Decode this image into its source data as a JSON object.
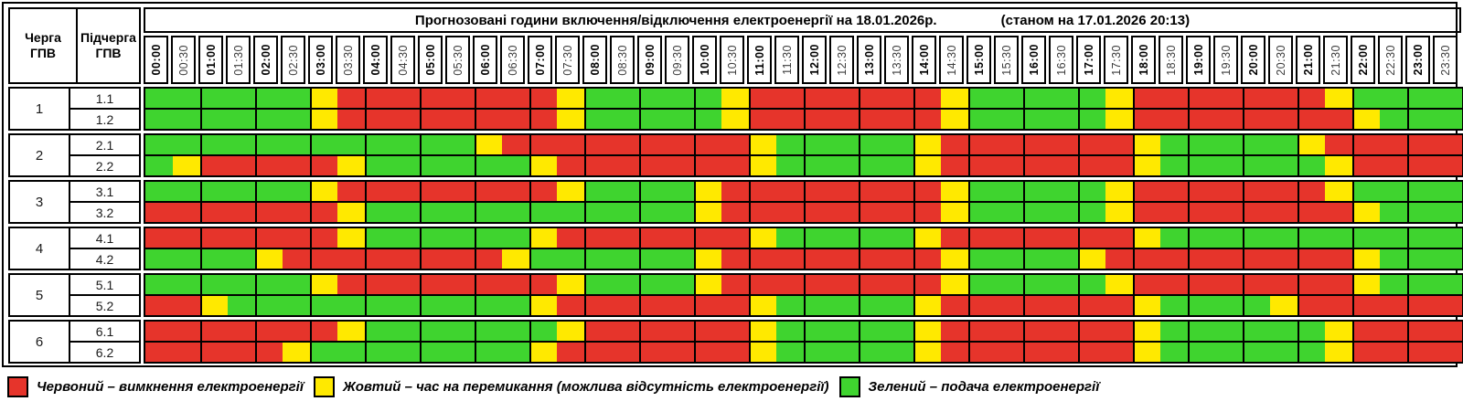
{
  "header": {
    "queue_col": "Черга ГПВ",
    "subqueue_col": "Підчерга ГПВ",
    "title": "Прогнозовані години включення/відключення електроенергії на 18.01.2026р.",
    "as_of": "(станом на 17.01.2026 20:13)"
  },
  "times": [
    "00:00",
    "00:30",
    "01:00",
    "01:30",
    "02:00",
    "02:30",
    "03:00",
    "03:30",
    "04:00",
    "04:30",
    "05:00",
    "05:30",
    "06:00",
    "06:30",
    "07:00",
    "07:30",
    "08:00",
    "08:30",
    "09:00",
    "09:30",
    "10:00",
    "10:30",
    "11:00",
    "11:30",
    "12:00",
    "12:30",
    "13:00",
    "13:30",
    "14:00",
    "14:30",
    "15:00",
    "15:30",
    "16:00",
    "16:30",
    "17:00",
    "17:30",
    "18:00",
    "18:30",
    "19:00",
    "19:30",
    "20:00",
    "20:30",
    "21:00",
    "21:30",
    "22:00",
    "22:30",
    "23:00",
    "23:30"
  ],
  "colors": {
    "R": "#e6342b",
    "Y": "#ffe900",
    "G": "#3fd42f"
  },
  "queues": [
    {
      "number": "1",
      "rows": [
        {
          "label": "1.1",
          "cells": "GGGGGGYRRRRRRRRYGGGGGYRRRRRRRYGGGGGYRRRRRRRYGGGG"
        },
        {
          "label": "1.2",
          "cells": "GGGGGGYRRRRRRRRYGGGGGYRRRRRRRYGGGGGYRRRRRRRRYGGG"
        }
      ]
    },
    {
      "number": "2",
      "rows": [
        {
          "label": "2.1",
          "cells": "GGGGGGGGGGGGYRRRRRRRRRYGGGGGYRRRRRRRYGGGGGYRRRRR"
        },
        {
          "label": "2.2",
          "cells": "GYRRRRRYGGGGGGYRRRRRRRYGGGGGYRRRRRRRYGGGGGGYRRRR"
        }
      ]
    },
    {
      "number": "3",
      "rows": [
        {
          "label": "3.1",
          "cells": "GGGGGGYRRRRRRRRYGGGGYRRRRRRRRYGGGGGYRRRRRRRYGGGG"
        },
        {
          "label": "3.2",
          "cells": "RRRRRRRYGGGGGGGGGGGGYRRRRRRRRYGGGGGYRRRRRRRRYGGG"
        }
      ]
    },
    {
      "number": "4",
      "rows": [
        {
          "label": "4.1",
          "cells": "RRRRRRRYGGGGGGYRRRRRRRYGGGGGYRRRRRRRYGGGGGGGGGGG"
        },
        {
          "label": "4.2",
          "cells": "GGGGYRRRRRRRRYGGGGGGYRRRRRRRRYGGGGYRRRRRRRRRYGGG"
        }
      ]
    },
    {
      "number": "5",
      "rows": [
        {
          "label": "5.1",
          "cells": "GGGGGGYRRRRRRRRYGGGGYRRRRRRRRYGGGGGYRRRRRRRRYGGG"
        },
        {
          "label": "5.2",
          "cells": "RRYGGGGGGGGGGGYRRRRRRRYGGGGGYRRRRRRRYGGGGYRRRRRR"
        }
      ]
    },
    {
      "number": "6",
      "rows": [
        {
          "label": "6.1",
          "cells": "RRRRRRRYGGGGGGGYRRRRRRYGGGGGYRRRRRRRYGGGGGGYRRRR"
        },
        {
          "label": "6.2",
          "cells": "RRRRRYGGGGGGGGYRRRRRRRYGGGGGYRRRRRRRYGGGGGGYRRRR"
        }
      ]
    }
  ],
  "legend": [
    {
      "key": "R",
      "label": "Червоний – вимкнення електроенергії"
    },
    {
      "key": "Y",
      "label": "Жовтий – час на перемикання (можлива відсутність електроенергії)"
    },
    {
      "key": "G",
      "label": "Зелений – подача електроенергії"
    }
  ]
}
